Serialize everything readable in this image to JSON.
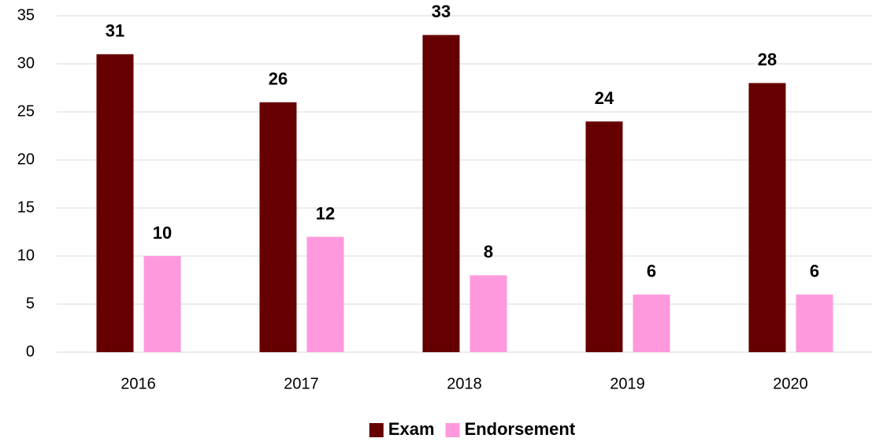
{
  "chart_data": {
    "type": "bar",
    "categories": [
      "2016",
      "2017",
      "2018",
      "2019",
      "2020"
    ],
    "series": [
      {
        "name": "Exam",
        "color": "#660000",
        "values": [
          31,
          26,
          33,
          24,
          28
        ]
      },
      {
        "name": "Endorsement",
        "color": "#ff99dd",
        "values": [
          10,
          12,
          8,
          6,
          6
        ]
      }
    ],
    "ylim": [
      0,
      35
    ],
    "yticks": [
      0,
      5,
      10,
      15,
      20,
      25,
      30,
      35
    ],
    "grid": true,
    "legend": "bottom"
  }
}
